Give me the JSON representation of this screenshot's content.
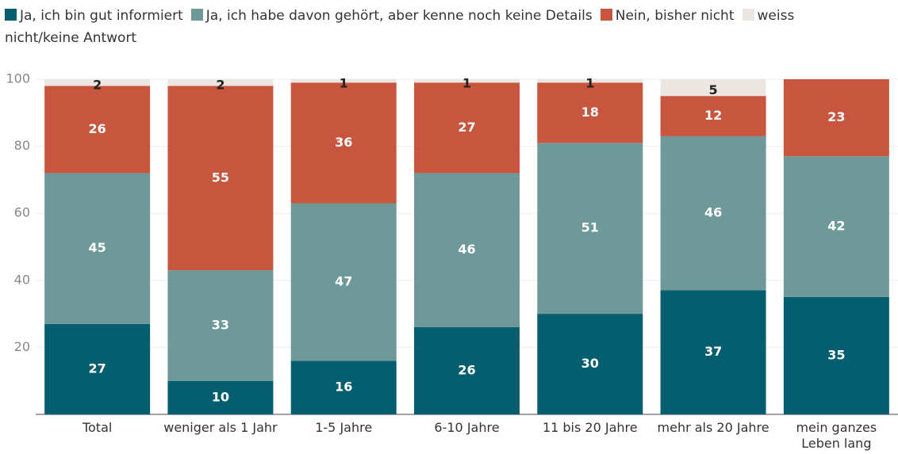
{
  "chart_data": {
    "type": "stacked_bar",
    "categories": [
      "Total",
      "weniger als 1 Jahr",
      "1-5 Jahre",
      "6-10 Jahre",
      "11 bis 20 Jahre",
      "mehr als 20 Jahre",
      "mein ganzes Leben lang"
    ],
    "series": [
      {
        "name": "Ja, ich bin gut informiert",
        "color": "#055e6f",
        "values": [
          27,
          10,
          16,
          26,
          30,
          37,
          35
        ]
      },
      {
        "name": "Ja, ich habe davon gehört, aber kenne noch keine Details",
        "color": "#6e9998",
        "values": [
          45,
          33,
          47,
          46,
          51,
          46,
          42
        ]
      },
      {
        "name": "Nein, bisher nicht",
        "color": "#c8553d",
        "values": [
          26,
          55,
          36,
          27,
          18,
          12,
          23
        ]
      },
      {
        "name": "weiss nicht/keine Antwort",
        "color": "#ebe6e1",
        "values": [
          2,
          2,
          1,
          1,
          1,
          5,
          null
        ]
      }
    ],
    "ylim": [
      0,
      100
    ],
    "yticks": [
      20,
      40,
      60,
      80,
      100
    ],
    "grid": true
  }
}
